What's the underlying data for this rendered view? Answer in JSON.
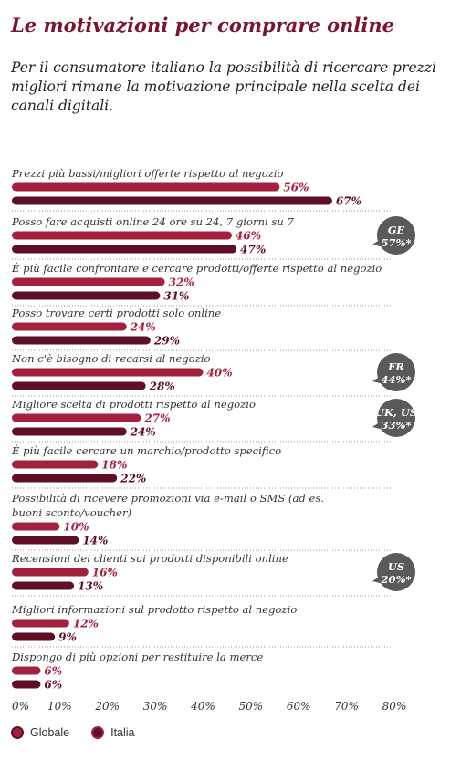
{
  "header": {
    "title": "Le motivazioni per comprare online",
    "subtitle": "Per il consumatore italiano la possibilità di ricercare prezzi migliori rimane la motivazione principale nella scelta dei canali digitali."
  },
  "colors": {
    "globale": "#a3203f",
    "italia": "#5e0f26",
    "badge": "#5a5a5a"
  },
  "legend": {
    "globale": "Globale",
    "italia": "Italia"
  },
  "chart_data": {
    "type": "bar",
    "orientation": "horizontal",
    "xlim": [
      0,
      80
    ],
    "ticks": [
      "0%",
      "10%",
      "20%",
      "30%",
      "40%",
      "50%",
      "60%",
      "70%",
      "80%"
    ],
    "categories": [
      "Prezzi più bassi/migliori offerte rispetto al negozio",
      "Posso fare acquisti online 24 ore su 24, 7 giorni su 7",
      "È più facile confrontare e cercare prodotti/offerte rispetto al negozio",
      "Posso trovare certi prodotti solo online",
      "Non c'è bisogno di recarsi al negozio",
      "Migliore scelta di prodotti rispetto al negozio",
      "È più facile cercare un marchio/prodotto specifico",
      "Possibilità di ricevere promozioni via e-mail o SMS (ad es. buoni sconto/voucher)",
      "Recensioni dei clienti sui prodotti disponibili online",
      "Migliori informazioni sul prodotto rispetto al negozio",
      "Dispongo di più opzioni per restituire la merce"
    ],
    "series": [
      {
        "name": "Globale",
        "values": [
          56,
          46,
          32,
          24,
          40,
          27,
          18,
          10,
          16,
          12,
          6
        ]
      },
      {
        "name": "Italia",
        "values": [
          67,
          47,
          31,
          29,
          28,
          24,
          22,
          14,
          13,
          9,
          6
        ]
      }
    ],
    "badges": [
      {
        "row": 1,
        "lines": [
          "GE",
          "57%*"
        ]
      },
      {
        "row": 4,
        "lines": [
          "FR",
          "44%*"
        ]
      },
      {
        "row": 5,
        "lines": [
          "UK, US",
          "33%*"
        ]
      },
      {
        "row": 8,
        "lines": [
          "US",
          "20%*"
        ]
      }
    ]
  }
}
